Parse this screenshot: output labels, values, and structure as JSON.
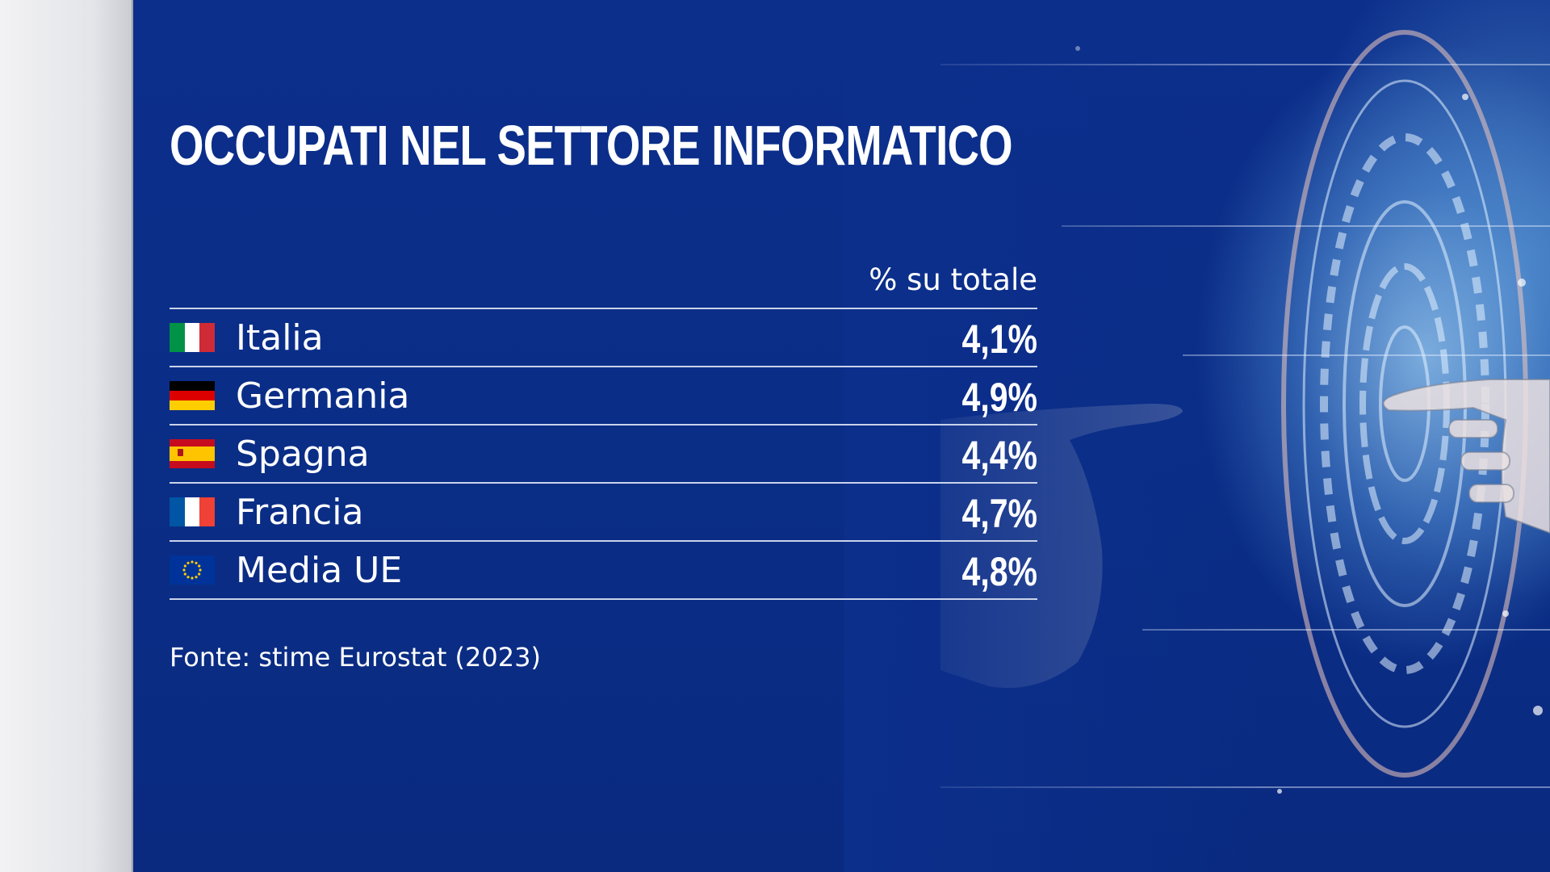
{
  "colors": {
    "panel_bg": "#0c2f8c",
    "text": "#ffffff",
    "rule": "#c9d3ea",
    "italy_green": "#009246",
    "italy_red": "#ce2b37",
    "germany_black": "#000000",
    "germany_red": "#dd0000",
    "germany_gold": "#ffce00",
    "spain_red": "#c60b1e",
    "spain_yellow": "#ffc400",
    "france_blue": "#0055a4",
    "france_red": "#ef4135",
    "eu_blue": "#003399",
    "eu_star": "#ffcc00"
  },
  "chart_data": {
    "type": "table",
    "title": "OCCUPATI NEL SETTORE INFORMATICO",
    "column_header": "% su totale",
    "rows": [
      {
        "flag": "italy-flag-icon",
        "label": "Italia",
        "value": 4.1,
        "display": "4,1%"
      },
      {
        "flag": "germany-flag-icon",
        "label": "Germania",
        "value": 4.9,
        "display": "4,9%"
      },
      {
        "flag": "spain-flag-icon",
        "label": "Spagna",
        "value": 4.4,
        "display": "4,4%"
      },
      {
        "flag": "france-flag-icon",
        "label": "Francia",
        "value": 4.7,
        "display": "4,7%"
      },
      {
        "flag": "eu-flag-icon",
        "label": "Media UE",
        "value": 4.8,
        "display": "4,8%"
      }
    ],
    "source": "Fonte: stime Eurostat (2023)"
  }
}
